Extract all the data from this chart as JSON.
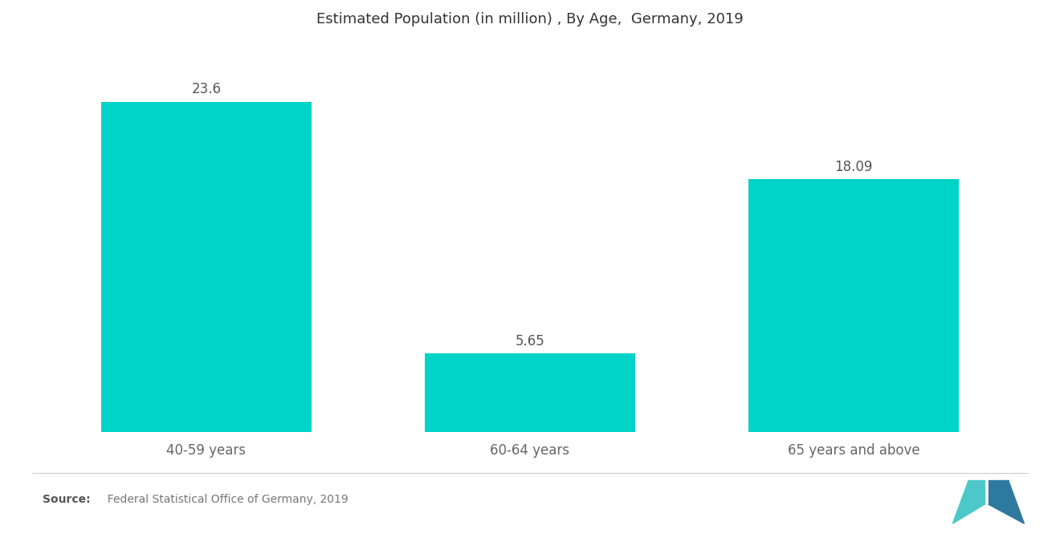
{
  "title": "Estimated Population (in million) , By Age,  Germany, 2019",
  "categories": [
    "40-59 years",
    "60-64 years",
    "65 years and above"
  ],
  "values": [
    23.6,
    5.65,
    18.09
  ],
  "bar_color": "#00D4C8",
  "value_labels": [
    "23.6",
    "5.65",
    "18.09"
  ],
  "source_bold": "Source:",
  "source_text": "  Federal Statistical Office of Germany, 2019",
  "title_fontsize": 13,
  "label_fontsize": 12,
  "value_fontsize": 12,
  "source_fontsize": 10,
  "background_color": "#FFFFFF",
  "ylim": [
    0,
    28
  ],
  "bar_width": 0.65,
  "x_positions": [
    0,
    1,
    2
  ],
  "xlim": [
    -0.6,
    2.6
  ]
}
